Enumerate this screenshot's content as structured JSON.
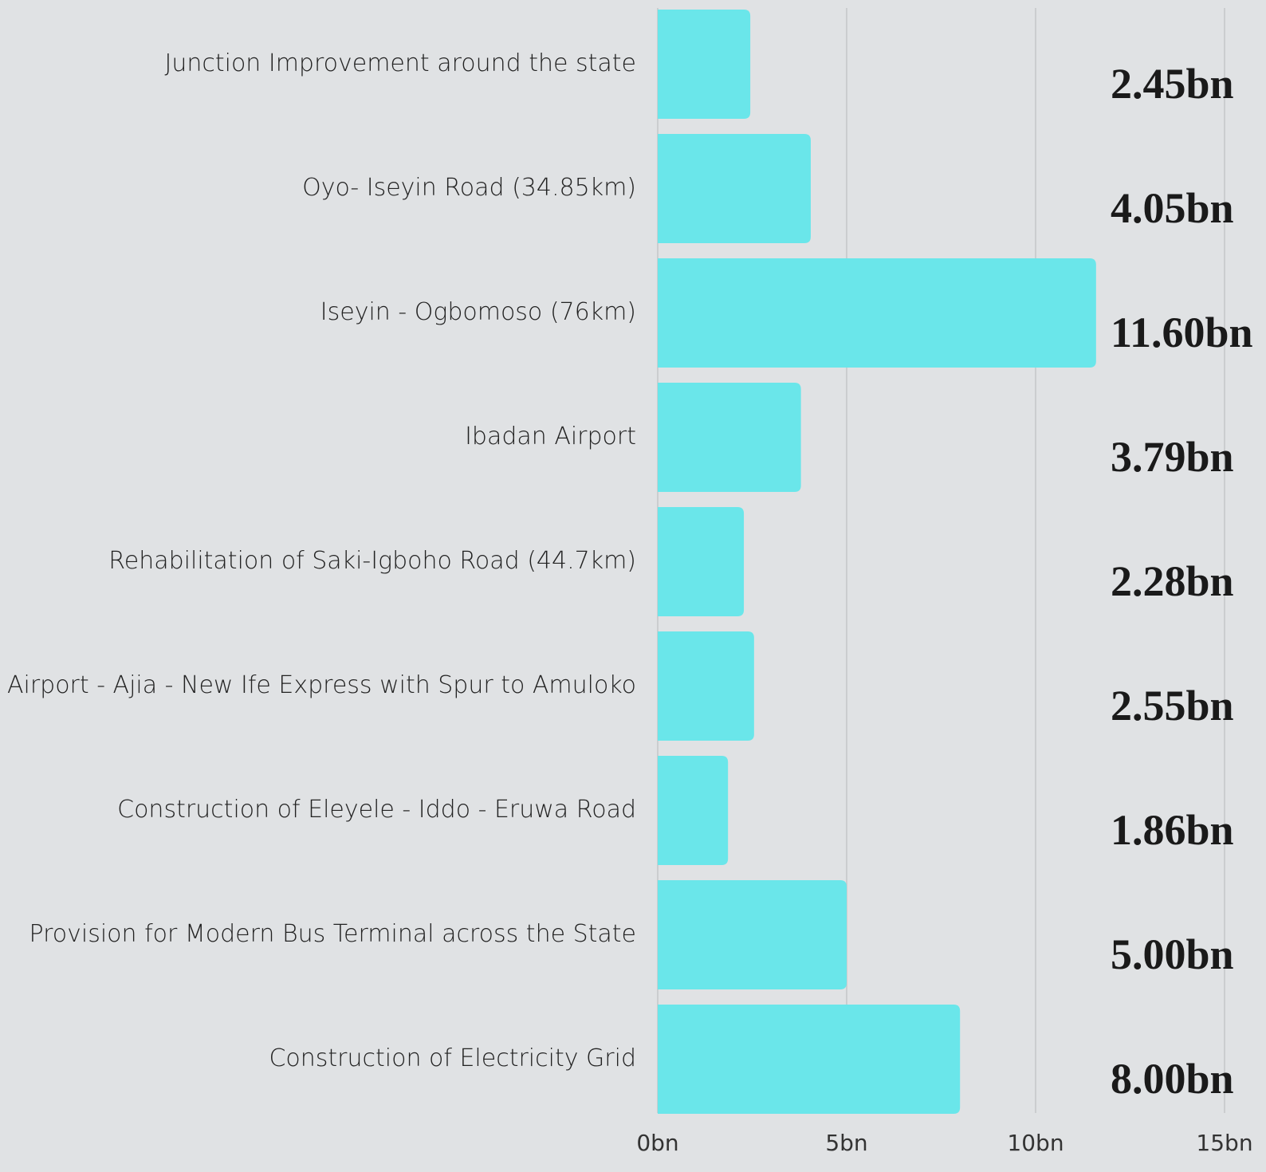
{
  "chart_data": {
    "type": "bar",
    "orientation": "horizontal",
    "categories": [
      "Junction Improvement around the state",
      "Oyo- Iseyin Road (34.85km)",
      "Iseyin - Ogbomoso (76km)",
      "Ibadan Airport",
      "Rehabilitation of Saki-Igboho Road (44.7km)",
      "Airport - Ajia - New Ife Express with Spur to Amuloko",
      "Construction of Eleyele - Iddo - Eruwa Road",
      "Provision for Modern Bus Terminal across the State",
      "Construction of Electricity Grid"
    ],
    "values": [
      2.45,
      4.05,
      11.6,
      3.79,
      2.28,
      2.55,
      1.86,
      5.0,
      8.0
    ],
    "value_labels": [
      "2.45bn",
      "4.05bn",
      "11.60bn",
      "3.79bn",
      "2.28bn",
      "2.55bn",
      "1.86bn",
      "5.00bn",
      "8.00bn"
    ],
    "color": "#6ae6ea",
    "xlim": [
      0,
      15
    ],
    "xticks": [
      {
        "value": 0,
        "label": "0bn"
      },
      {
        "value": 5,
        "label": "5bn"
      },
      {
        "value": 10,
        "label": "10bn"
      },
      {
        "value": 15,
        "label": "15bn"
      }
    ],
    "grid": true
  }
}
